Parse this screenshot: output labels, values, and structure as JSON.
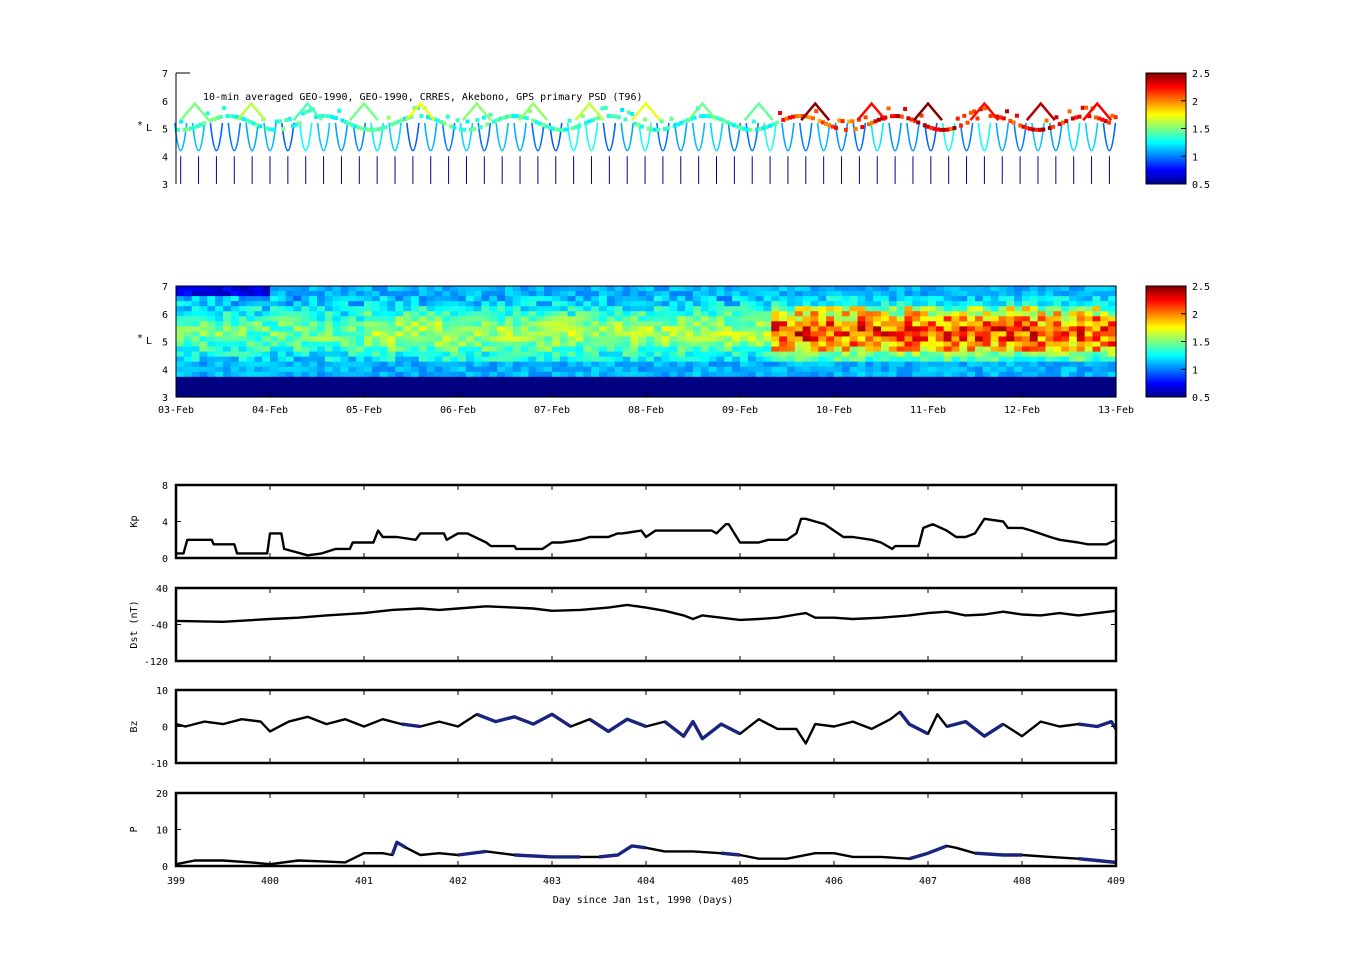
{
  "figure": {
    "background": "#ffffff",
    "line_color": "#000000",
    "highlight_color": "#1a237e"
  },
  "colorbar": {
    "ticks": [
      "2.5",
      "2",
      "1.5",
      "1",
      "0.5"
    ],
    "range": [
      0.5,
      2.5
    ],
    "colormap": "jet"
  },
  "chart_data": [
    {
      "id": "psd-observed",
      "type": "heatmap",
      "title": "10-min averaged GEO-1990, GEO-1990, CRRES, Akebono, GPS  primary PSD (T96)",
      "ylabel_lines": [
        "*",
        "L"
      ],
      "y_ticks": [
        "7",
        "6",
        "5",
        "4",
        "3"
      ],
      "ylim": [
        3,
        7
      ],
      "xlim": [
        399,
        409
      ],
      "color_range": [
        0.5,
        2.5
      ],
      "representation": "sparse orbital passes at L* 3-6 with PSD colour 0.5-2.5"
    },
    {
      "id": "psd-reanalysis",
      "type": "heatmap",
      "ylabel_lines": [
        "*",
        "L"
      ],
      "y_ticks": [
        "7",
        "6",
        "5",
        "4",
        "3"
      ],
      "ylim": [
        3,
        7
      ],
      "xlim": [
        399,
        409
      ],
      "x_tick_labels": [
        "03-Feb",
        "04-Feb",
        "05-Feb",
        "06-Feb",
        "07-Feb",
        "08-Feb",
        "09-Feb",
        "10-Feb",
        "11-Feb",
        "12-Feb",
        "13-Feb"
      ],
      "color_range": [
        0.5,
        2.5
      ],
      "representation": "filled L*-time map of PSD, low (0.5) below L*=3.7, enhancements (~2-2.5) at L*=5-6 after 08-Feb"
    },
    {
      "id": "kp",
      "type": "line",
      "ylabel": "Kp",
      "y_ticks": [
        "8",
        "4",
        "0"
      ],
      "ylim": [
        0,
        8
      ],
      "xlim": [
        399,
        409
      ],
      "series": [
        {
          "x": [
            399.0,
            399.08,
            399.12,
            399.38,
            399.4,
            399.62,
            399.65,
            399.97,
            400.0,
            400.12,
            400.15,
            400.4,
            400.55,
            400.7,
            400.85,
            400.88,
            401.0,
            401.1,
            401.15,
            401.2,
            401.35,
            401.55,
            401.6,
            401.85,
            401.88,
            402.0,
            402.1,
            402.3,
            402.35,
            402.6,
            402.62,
            402.9,
            403.0,
            403.1,
            403.3,
            403.4,
            403.6,
            403.7,
            403.75,
            403.95,
            404.0,
            404.1,
            404.3,
            404.5,
            404.7,
            404.75,
            404.85,
            404.88,
            405.0,
            405.1,
            405.2,
            405.3,
            405.5,
            405.6,
            405.65,
            405.7,
            405.8,
            405.9,
            406.0,
            406.1,
            406.2,
            406.4,
            406.5,
            406.62,
            406.65,
            406.9,
            406.95,
            407.05,
            407.2,
            407.3,
            407.4,
            407.5,
            407.6,
            407.8,
            407.85,
            408.0,
            408.1,
            408.3,
            408.4,
            408.6,
            408.7,
            408.9,
            409.0
          ],
          "y": [
            0.5,
            0.5,
            2.0,
            2.0,
            1.5,
            1.5,
            0.5,
            0.5,
            2.7,
            2.7,
            1.0,
            0.3,
            0.5,
            1.0,
            1.0,
            1.7,
            1.7,
            1.7,
            3.0,
            2.3,
            2.3,
            2.0,
            2.7,
            2.7,
            2.0,
            2.7,
            2.7,
            1.7,
            1.3,
            1.3,
            1.0,
            1.0,
            1.7,
            1.7,
            2.0,
            2.3,
            2.3,
            2.7,
            2.7,
            3.0,
            2.3,
            3.0,
            3.0,
            3.0,
            3.0,
            2.7,
            3.7,
            3.7,
            1.7,
            1.7,
            1.7,
            2.0,
            2.0,
            2.7,
            4.3,
            4.3,
            4.0,
            3.7,
            3.0,
            2.3,
            2.3,
            2.0,
            1.7,
            1.0,
            1.3,
            1.3,
            3.3,
            3.7,
            3.0,
            2.3,
            2.3,
            2.7,
            4.3,
            4.0,
            3.3,
            3.3,
            3.0,
            2.3,
            2.0,
            1.7,
            1.5,
            1.5,
            2.0
          ]
        }
      ]
    },
    {
      "id": "dst",
      "type": "line",
      "ylabel": "Dst (nT)",
      "y_ticks": [
        "40",
        "-40",
        "-120"
      ],
      "ylim": [
        -120,
        40
      ],
      "xlim": [
        399,
        409
      ],
      "series": [
        {
          "x": [
            399.0,
            399.5,
            400.0,
            400.3,
            400.6,
            401.0,
            401.3,
            401.6,
            401.8,
            402.0,
            402.3,
            402.6,
            402.8,
            403.0,
            403.3,
            403.6,
            403.8,
            404.0,
            404.2,
            404.4,
            404.5,
            404.6,
            404.8,
            405.0,
            405.2,
            405.4,
            405.6,
            405.7,
            405.8,
            406.0,
            406.2,
            406.5,
            406.8,
            407.0,
            407.2,
            407.4,
            407.6,
            407.8,
            408.0,
            408.2,
            408.4,
            408.6,
            408.8,
            409.0
          ],
          "y": [
            -32,
            -34,
            -28,
            -25,
            -20,
            -15,
            -8,
            -5,
            -8,
            -5,
            0,
            -3,
            -5,
            -10,
            -8,
            -3,
            3,
            -3,
            -10,
            -20,
            -28,
            -20,
            -25,
            -30,
            -28,
            -25,
            -18,
            -15,
            -25,
            -25,
            -28,
            -25,
            -20,
            -15,
            -12,
            -20,
            -18,
            -12,
            -18,
            -20,
            -15,
            -20,
            -15,
            -10
          ]
        }
      ]
    },
    {
      "id": "bz",
      "type": "line",
      "ylabel": "Bz",
      "y_ticks": [
        "10",
        "0",
        "-10"
      ],
      "ylim": [
        -15,
        15
      ],
      "xlim": [
        399,
        409
      ],
      "series": [
        {
          "x": [
            399.0,
            399.1,
            399.3,
            399.5,
            399.7,
            399.9,
            400.0,
            400.2,
            400.4,
            400.6,
            400.8,
            401.0,
            401.2,
            401.4,
            401.6,
            401.8,
            402.0,
            402.2,
            402.4,
            402.6,
            402.8,
            403.0,
            403.2,
            403.4,
            403.6,
            403.8,
            404.0,
            404.2,
            404.4,
            404.5,
            404.6,
            404.8,
            405.0,
            405.2,
            405.4,
            405.6,
            405.7,
            405.8,
            406.0,
            406.2,
            406.4,
            406.6,
            406.7,
            406.8,
            407.0,
            407.1,
            407.2,
            407.4,
            407.6,
            407.8,
            408.0,
            408.2,
            408.4,
            408.6,
            408.8,
            408.95,
            409.0
          ],
          "y": [
            1,
            0,
            2,
            1,
            3,
            2,
            -2,
            2,
            4,
            1,
            3,
            0,
            3,
            1,
            0,
            2,
            0,
            5,
            2,
            4,
            1,
            5,
            0,
            3,
            -2,
            3,
            0,
            2,
            -4,
            2,
            -5,
            1,
            -3,
            3,
            -1,
            -1,
            -7,
            1,
            0,
            2,
            -1,
            3,
            6,
            1,
            -3,
            5,
            0,
            2,
            -4,
            1,
            -4,
            2,
            0,
            1,
            0,
            2,
            -1
          ]
        }
      ],
      "highlight_segments": [
        [
          401.3,
          401.7
        ],
        [
          402.1,
          403.2
        ],
        [
          403.4,
          404.0
        ],
        [
          404.2,
          405.1
        ],
        [
          406.7,
          407.0
        ],
        [
          407.2,
          407.9
        ],
        [
          408.5,
          409.0
        ]
      ]
    },
    {
      "id": "pressure",
      "type": "line",
      "ylabel": "P",
      "y_ticks": [
        "20",
        "10",
        "0"
      ],
      "ylim": [
        0,
        20
      ],
      "xlim": [
        399,
        409
      ],
      "xlabel": "Day since Jan 1st, 1990 (Days)",
      "x_ticks": [
        "399",
        "400",
        "401",
        "402",
        "403",
        "404",
        "405",
        "406",
        "407",
        "408",
        "409"
      ],
      "series": [
        {
          "x": [
            399.0,
            399.2,
            399.5,
            399.8,
            400.0,
            400.3,
            400.6,
            400.8,
            401.0,
            401.2,
            401.3,
            401.35,
            401.45,
            401.6,
            401.8,
            402.0,
            402.3,
            402.6,
            403.0,
            403.3,
            403.5,
            403.7,
            403.85,
            404.0,
            404.2,
            404.5,
            404.8,
            405.0,
            405.2,
            405.5,
            405.8,
            406.0,
            406.2,
            406.5,
            406.8,
            407.0,
            407.2,
            407.3,
            407.5,
            407.8,
            408.0,
            408.3,
            408.6,
            408.8,
            409.0
          ],
          "y": [
            0.5,
            1.5,
            1.5,
            1.0,
            0.5,
            1.5,
            1.2,
            1.0,
            3.5,
            3.5,
            3.0,
            6.5,
            5.0,
            3.0,
            3.5,
            3.0,
            4.0,
            3.0,
            2.5,
            2.5,
            2.5,
            3.0,
            5.5,
            5.0,
            4.0,
            4.0,
            3.5,
            3.0,
            2.0,
            2.0,
            3.5,
            3.5,
            2.5,
            2.5,
            2.0,
            3.5,
            5.5,
            5.0,
            3.5,
            3.0,
            3.0,
            2.5,
            2.0,
            1.5,
            1.0
          ]
        }
      ],
      "highlight_segments": [
        [
          401.3,
          401.5
        ],
        [
          402.0,
          402.4
        ],
        [
          402.6,
          403.4
        ],
        [
          403.5,
          404.0
        ],
        [
          404.7,
          405.1
        ],
        [
          405.7,
          405.9
        ],
        [
          406.7,
          407.2
        ],
        [
          407.4,
          408.1
        ],
        [
          408.5,
          409.0
        ]
      ]
    }
  ]
}
